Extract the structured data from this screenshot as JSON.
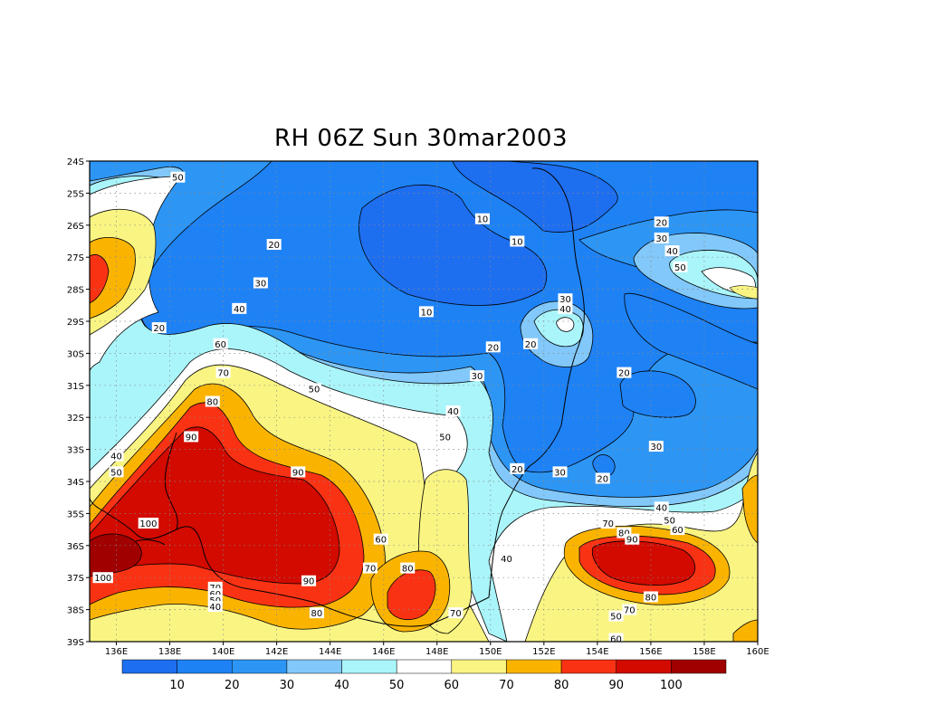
{
  "title": "RH 06Z Sun 30mar2003",
  "axes": {
    "lat_ticks": [
      "24S",
      "25S",
      "26S",
      "27S",
      "28S",
      "29S",
      "30S",
      "31S",
      "32S",
      "33S",
      "34S",
      "35S",
      "36S",
      "37S",
      "38S",
      "39S"
    ],
    "lon_ticks": [
      "136E",
      "138E",
      "140E",
      "142E",
      "144E",
      "146E",
      "148E",
      "150E",
      "152E",
      "154E",
      "156E",
      "158E",
      "160E"
    ],
    "lon_range": [
      135,
      160
    ],
    "lat_range": [
      -39,
      -24
    ],
    "grid": "dotted"
  },
  "colorbar": {
    "labels": [
      "10",
      "20",
      "30",
      "40",
      "50",
      "60",
      "70",
      "80",
      "90",
      "100"
    ],
    "colors": [
      "#1e6ef0",
      "#1e82f5",
      "#2d96f5",
      "#82c8fa",
      "#aaf5fa",
      "#ffffff",
      "#faf582",
      "#fab400",
      "#fa3214",
      "#d20a00",
      "#a00000"
    ]
  },
  "contour_labels": [
    {
      "t": "50",
      "lon": 138.3,
      "lat": -24.5
    },
    {
      "t": "10",
      "lon": 149.7,
      "lat": -25.8
    },
    {
      "t": "10",
      "lon": 151.0,
      "lat": -26.5
    },
    {
      "t": "20",
      "lon": 156.4,
      "lat": -25.9
    },
    {
      "t": "20",
      "lon": 141.9,
      "lat": -26.6
    },
    {
      "t": "30",
      "lon": 156.4,
      "lat": -26.4
    },
    {
      "t": "40",
      "lon": 156.8,
      "lat": -26.8
    },
    {
      "t": "50",
      "lon": 157.1,
      "lat": -27.3
    },
    {
      "t": "30",
      "lon": 141.4,
      "lat": -27.8
    },
    {
      "t": "40",
      "lon": 140.6,
      "lat": -28.6
    },
    {
      "t": "20",
      "lon": 137.6,
      "lat": -29.2
    },
    {
      "t": "10",
      "lon": 147.6,
      "lat": -28.7
    },
    {
      "t": "30",
      "lon": 152.8,
      "lat": -28.3
    },
    {
      "t": "40",
      "lon": 152.8,
      "lat": -28.6
    },
    {
      "t": "20",
      "lon": 150.1,
      "lat": -29.8
    },
    {
      "t": "20",
      "lon": 151.5,
      "lat": -29.7
    },
    {
      "t": "60",
      "lon": 139.9,
      "lat": -29.7
    },
    {
      "t": "30",
      "lon": 149.5,
      "lat": -30.7
    },
    {
      "t": "20",
      "lon": 155.0,
      "lat": -30.6
    },
    {
      "t": "70",
      "lon": 140.0,
      "lat": -30.6
    },
    {
      "t": "50",
      "lon": 143.4,
      "lat": -31.1
    },
    {
      "t": "80",
      "lon": 139.6,
      "lat": -31.5
    },
    {
      "t": "40",
      "lon": 148.6,
      "lat": -31.8
    },
    {
      "t": "50",
      "lon": 148.3,
      "lat": -32.6
    },
    {
      "t": "90",
      "lon": 138.8,
      "lat": -32.6
    },
    {
      "t": "30",
      "lon": 156.2,
      "lat": -32.9
    },
    {
      "t": "40",
      "lon": 136.0,
      "lat": -33.2
    },
    {
      "t": "50",
      "lon": 136.0,
      "lat": -33.7
    },
    {
      "t": "20",
      "lon": 151.0,
      "lat": -33.6
    },
    {
      "t": "30",
      "lon": 152.6,
      "lat": -33.7
    },
    {
      "t": "20",
      "lon": 154.2,
      "lat": -33.9
    },
    {
      "t": "90",
      "lon": 142.8,
      "lat": -33.7
    },
    {
      "t": "40",
      "lon": 156.4,
      "lat": -34.8
    },
    {
      "t": "50",
      "lon": 156.7,
      "lat": -35.2
    },
    {
      "t": "60",
      "lon": 157.0,
      "lat": -35.5
    },
    {
      "t": "100",
      "lon": 137.2,
      "lat": -35.3
    },
    {
      "t": "70",
      "lon": 154.4,
      "lat": -35.3
    },
    {
      "t": "80",
      "lon": 155.0,
      "lat": -35.6
    },
    {
      "t": "90",
      "lon": 155.3,
      "lat": -35.8
    },
    {
      "t": "60",
      "lon": 145.9,
      "lat": -35.8
    },
    {
      "t": "40",
      "lon": 150.6,
      "lat": -36.4
    },
    {
      "t": "70",
      "lon": 145.5,
      "lat": -36.7
    },
    {
      "t": "80",
      "lon": 146.9,
      "lat": -36.7
    },
    {
      "t": "100",
      "lon": 135.5,
      "lat": -37.0
    },
    {
      "t": "90",
      "lon": 143.2,
      "lat": -37.1
    },
    {
      "t": "70",
      "lon": 139.7,
      "lat": -37.3
    },
    {
      "t": "60",
      "lon": 139.7,
      "lat": -37.5
    },
    {
      "t": "50",
      "lon": 139.7,
      "lat": -37.7
    },
    {
      "t": "40",
      "lon": 139.7,
      "lat": -37.9
    },
    {
      "t": "80",
      "lon": 156.0,
      "lat": -37.6
    },
    {
      "t": "70",
      "lon": 148.7,
      "lat": -38.1
    },
    {
      "t": "70",
      "lon": 155.2,
      "lat": -38.0
    },
    {
      "t": "80",
      "lon": 143.5,
      "lat": -38.1
    },
    {
      "t": "50",
      "lon": 154.7,
      "lat": -38.2
    },
    {
      "t": "60",
      "lon": 154.7,
      "lat": -38.9
    }
  ]
}
